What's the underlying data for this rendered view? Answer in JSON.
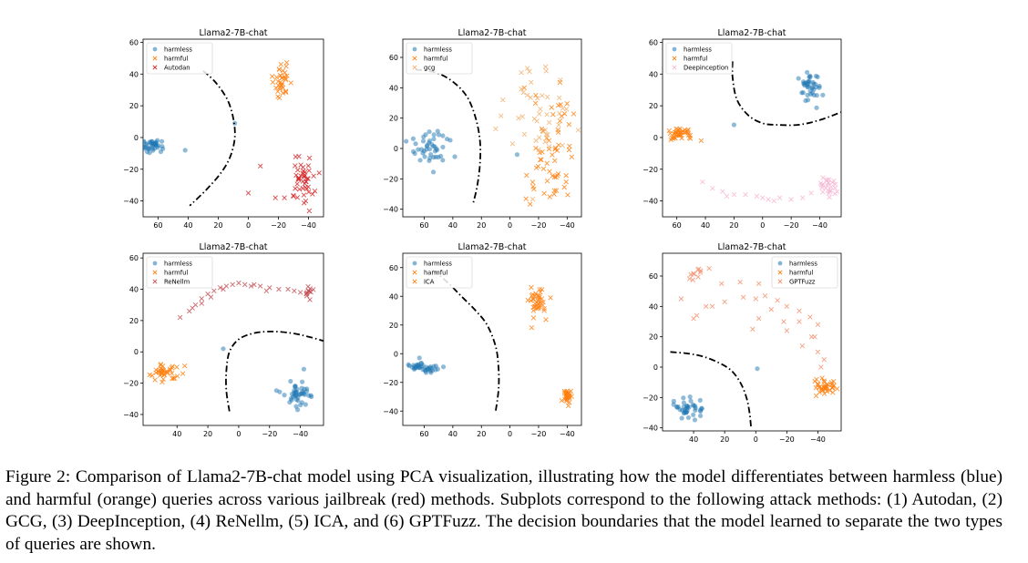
{
  "figure": {
    "caption": "Figure 2: Comparison of Llama2-7B-chat model using PCA visualization, illustrating how the model differentiates between harmless (blue) and harmful (orange) queries across various jailbreak (red) methods. Subplots correspond to the following attack methods: (1) Autodan, (2) GCG, (3) DeepInception, (4) ReNellm, (5) ICA, and (6) GPTFuzz. The decision boundaries that the model learned to separate the two types of queries are shown."
  },
  "colors": {
    "harmless": "#1f77b4",
    "harmful": "#ff7f0e",
    "autodan": "#d62728",
    "gcg": "#f0b070",
    "deepinception": "#f7b6d2",
    "renellm": "#c44e52",
    "ica": "#ff7f0e",
    "gptfuzz": "#f28e6b",
    "boundary": "#000000"
  },
  "chart_data": [
    {
      "type": "scatter",
      "title": "Llama2-7B-chat",
      "xlim": [
        70,
        -50
      ],
      "ylim": [
        -50,
        62
      ],
      "xticks": [
        60,
        40,
        20,
        0,
        -20,
        -40
      ],
      "yticks": [
        -40,
        -20,
        0,
        20,
        40,
        60
      ],
      "legend": [
        "harmless",
        "harmful",
        "Autodan"
      ],
      "legend_position": "top-left",
      "jailbreak_color_key": "autodan",
      "series": [
        {
          "name": "harmless",
          "marker": "circle",
          "color_key": "harmless",
          "clusters": [
            {
              "center": [
                64,
                -5
              ],
              "spread": [
                4,
                2
              ],
              "n": 40
            }
          ],
          "points": [
            [
              9,
              9
            ],
            [
              42,
              -8
            ]
          ]
        },
        {
          "name": "harmful",
          "marker": "x",
          "color_key": "harmful",
          "clusters": [
            {
              "center": [
                -22,
                36
              ],
              "spread": [
                3,
                5
              ],
              "n": 35
            }
          ],
          "points": []
        },
        {
          "name": "Autodan",
          "marker": "x",
          "color_key": "autodan",
          "clusters": [
            {
              "center": [
                -37,
                -28
              ],
              "spread": [
                4,
                7
              ],
              "n": 45
            }
          ],
          "points": [
            [
              0,
              -35
            ],
            [
              -18,
              -38
            ],
            [
              -24,
              -38
            ],
            [
              -30,
              -37
            ],
            [
              -8,
              -18
            ]
          ]
        }
      ],
      "boundary": [
        [
          30,
          42
        ],
        [
          22,
          35
        ],
        [
          14,
          24
        ],
        [
          10,
          12
        ],
        [
          9,
          0
        ],
        [
          12,
          -12
        ],
        [
          18,
          -22
        ],
        [
          28,
          -33
        ],
        [
          39,
          -43
        ]
      ]
    },
    {
      "type": "scatter",
      "title": "Llama2-7B-chat",
      "xlim": [
        75,
        -50
      ],
      "ylim": [
        -45,
        72
      ],
      "xticks": [
        60,
        40,
        20,
        0,
        -20,
        -40
      ],
      "yticks": [
        -40,
        -20,
        0,
        20,
        40,
        60
      ],
      "legend": [
        "harmless",
        "harmful",
        "gcg"
      ],
      "legend_position": "top-left",
      "jailbreak_color_key": "gcg",
      "series": [
        {
          "name": "harmless",
          "marker": "circle",
          "color_key": "harmless",
          "clusters": [
            {
              "center": [
                57,
                -1
              ],
              "spread": [
                6,
                6
              ],
              "n": 45
            }
          ],
          "points": [
            [
              -5,
              -4
            ]
          ]
        },
        {
          "name": "harmful",
          "marker": "x",
          "color_key": "harmful",
          "clusters": [
            {
              "center": [
                -25,
                -17
              ],
              "spread": [
                7,
                12
              ],
              "n": 35
            },
            {
              "center": [
                -32,
                15
              ],
              "spread": [
                6,
                12
              ],
              "n": 25
            }
          ],
          "points": [
            [
              -10,
              40
            ],
            [
              -18,
              35
            ]
          ]
        },
        {
          "name": "gcg",
          "marker": "x",
          "color_key": "gcg",
          "clusters": [
            {
              "center": [
                -20,
                22
              ],
              "spread": [
                12,
                18
              ],
              "n": 40
            }
          ],
          "points": [
            [
              -8,
              50
            ],
            [
              5,
              32
            ],
            [
              10,
              13
            ],
            [
              -6,
              20
            ]
          ]
        }
      ],
      "boundary": [
        [
          66,
          52
        ],
        [
          52,
          50
        ],
        [
          40,
          44
        ],
        [
          30,
          34
        ],
        [
          24,
          20
        ],
        [
          21,
          5
        ],
        [
          21,
          -10
        ],
        [
          23,
          -25
        ],
        [
          26,
          -37
        ]
      ]
    },
    {
      "type": "scatter",
      "title": "Llama2-7B-chat",
      "xlim": [
        70,
        -55
      ],
      "ylim": [
        -50,
        62
      ],
      "xticks": [
        60,
        40,
        20,
        0,
        -20,
        -40
      ],
      "yticks": [
        -40,
        -20,
        0,
        20,
        40,
        60
      ],
      "legend": [
        "harmless",
        "harmful",
        "Deepinception"
      ],
      "legend_position": "top-left",
      "jailbreak_color_key": "deepinception",
      "series": [
        {
          "name": "harmless",
          "marker": "circle",
          "color_key": "harmless",
          "clusters": [
            {
              "center": [
                -33,
                32
              ],
              "spread": [
                4,
                5
              ],
              "n": 40
            }
          ],
          "points": [
            [
              20,
              8
            ]
          ]
        },
        {
          "name": "harmful",
          "marker": "x",
          "color_key": "harmful",
          "clusters": [
            {
              "center": [
                58,
                2
              ],
              "spread": [
                4,
                2
              ],
              "n": 40
            }
          ],
          "points": [
            [
              43,
              -2
            ]
          ]
        },
        {
          "name": "Deepinception",
          "marker": "x",
          "color_key": "deepinception",
          "clusters": [
            {
              "center": [
                -46,
                -30
              ],
              "spread": [
                4,
                3
              ],
              "n": 25
            }
          ],
          "points": [
            [
              42,
              -28
            ],
            [
              35,
              -32
            ],
            [
              28,
              -34
            ],
            [
              20,
              -36
            ],
            [
              12,
              -36
            ],
            [
              4,
              -37
            ],
            [
              -4,
              -39
            ],
            [
              -12,
              -38
            ],
            [
              -20,
              -39
            ],
            [
              -28,
              -38
            ],
            [
              -34,
              -35
            ],
            [
              0,
              -38
            ],
            [
              -8,
              -40
            ],
            [
              25,
              -37
            ]
          ]
        }
      ],
      "boundary": [
        [
          21,
          48
        ],
        [
          21,
          38
        ],
        [
          18,
          24
        ],
        [
          10,
          14
        ],
        [
          0,
          9
        ],
        [
          -10,
          8
        ],
        [
          -25,
          8
        ],
        [
          -40,
          11
        ],
        [
          -55,
          16
        ]
      ]
    },
    {
      "type": "scatter",
      "title": "Llama2-7B-chat",
      "xlim": [
        62,
        -55
      ],
      "ylim": [
        -47,
        63
      ],
      "xticks": [
        40,
        20,
        0,
        -20,
        -40
      ],
      "yticks": [
        -40,
        -20,
        0,
        20,
        40,
        60
      ],
      "legend": [
        "harmless",
        "harmful",
        "ReNellm"
      ],
      "legend_position": "top-left",
      "jailbreak_color_key": "renellm",
      "series": [
        {
          "name": "harmless",
          "marker": "circle",
          "color_key": "harmless",
          "clusters": [
            {
              "center": [
                -38,
                -26
              ],
              "spread": [
                5,
                5
              ],
              "n": 45
            }
          ],
          "points": [
            [
              10,
              2
            ]
          ]
        },
        {
          "name": "harmful",
          "marker": "x",
          "color_key": "harmful",
          "clusters": [
            {
              "center": [
                48,
                -13
              ],
              "spread": [
                4,
                3
              ],
              "n": 40
            }
          ],
          "points": [
            [
              35,
              -9
            ]
          ]
        },
        {
          "name": "ReNellm",
          "marker": "x",
          "color_key": "renellm",
          "clusters": [
            {
              "center": [
                -45,
                37
              ],
              "spread": [
                2,
                2
              ],
              "n": 12
            }
          ],
          "points": [
            [
              38,
              22
            ],
            [
              32,
              26
            ],
            [
              28,
              30
            ],
            [
              24,
              34
            ],
            [
              20,
              37
            ],
            [
              16,
              39
            ],
            [
              12,
              41
            ],
            [
              8,
              42
            ],
            [
              4,
              43
            ],
            [
              0,
              44
            ],
            [
              -4,
              43
            ],
            [
              -8,
              42
            ],
            [
              -14,
              42
            ],
            [
              -20,
              41
            ],
            [
              -26,
              40
            ],
            [
              -32,
              40
            ],
            [
              -36,
              39
            ],
            [
              -40,
              38
            ],
            [
              24,
              31
            ],
            [
              18,
              35
            ],
            [
              10,
              40
            ],
            [
              30,
              28
            ],
            [
              -18,
              39
            ],
            [
              -10,
              43
            ]
          ]
        }
      ],
      "boundary": [
        [
          6,
          -38
        ],
        [
          8,
          -25
        ],
        [
          8,
          -12
        ],
        [
          6,
          0
        ],
        [
          0,
          8
        ],
        [
          -10,
          12
        ],
        [
          -22,
          13
        ],
        [
          -34,
          12
        ],
        [
          -44,
          10
        ],
        [
          -55,
          7
        ]
      ]
    },
    {
      "type": "scatter",
      "title": "Llama2-7B-chat",
      "xlim": [
        75,
        -50
      ],
      "ylim": [
        -50,
        70
      ],
      "xticks": [
        60,
        40,
        20,
        0,
        -20,
        -40
      ],
      "yticks": [
        -40,
        -20,
        0,
        20,
        40,
        60
      ],
      "legend": [
        "harmless",
        "harmful",
        "ICA"
      ],
      "legend_position": "top-left",
      "jailbreak_color_key": "ica",
      "series": [
        {
          "name": "harmless",
          "marker": "circle",
          "color_key": "harmless",
          "clusters": [
            {
              "center": [
                60,
                -9
              ],
              "spread": [
                5,
                2
              ],
              "n": 40
            }
          ],
          "points": []
        },
        {
          "name": "harmful",
          "marker": "x",
          "color_key": "harmful",
          "clusters": [
            {
              "center": [
                -18,
                37
              ],
              "spread": [
                4,
                5
              ],
              "n": 40
            }
          ],
          "points": []
        },
        {
          "name": "ICA",
          "marker": "x",
          "color_key": "ica",
          "clusters": [
            {
              "center": [
                -40,
                -30
              ],
              "spread": [
                1.5,
                3
              ],
              "n": 30
            }
          ],
          "points": []
        }
      ],
      "boundary": [
        [
          54,
          58
        ],
        [
          44,
          50
        ],
        [
          34,
          40
        ],
        [
          24,
          30
        ],
        [
          16,
          20
        ],
        [
          10,
          5
        ],
        [
          8,
          -10
        ],
        [
          8,
          -25
        ],
        [
          10,
          -40
        ]
      ]
    },
    {
      "type": "scatter",
      "title": "Llama2-7B-chat",
      "xlim": [
        60,
        -55
      ],
      "ylim": [
        -42,
        75
      ],
      "xticks": [
        40,
        20,
        0,
        -20,
        -40
      ],
      "yticks": [
        -40,
        -20,
        0,
        20,
        40,
        60
      ],
      "legend": [
        "harmless",
        "harmful",
        "GPTFuzz"
      ],
      "legend_position": "top-right",
      "jailbreak_color_key": "gptfuzz",
      "series": [
        {
          "name": "harmless",
          "marker": "circle",
          "color_key": "harmless",
          "clusters": [
            {
              "center": [
                43,
                -27
              ],
              "spread": [
                5,
                4
              ],
              "n": 40
            }
          ],
          "points": [
            [
              -1,
              -1
            ]
          ]
        },
        {
          "name": "harmful",
          "marker": "x",
          "color_key": "harmful",
          "clusters": [
            {
              "center": [
                -44,
                -13
              ],
              "spread": [
                4,
                3
              ],
              "n": 40
            }
          ],
          "points": []
        },
        {
          "name": "GPTFuzz",
          "marker": "x",
          "color_key": "gptfuzz",
          "clusters": [
            {
              "center": [
                39,
                61
              ],
              "spread": [
                2,
                2
              ],
              "n": 10
            }
          ],
          "points": [
            [
              30,
              65
            ],
            [
              22,
              55
            ],
            [
              10,
              56
            ],
            [
              -2,
              55
            ],
            [
              -6,
              47
            ],
            [
              -14,
              44
            ],
            [
              -20,
              40
            ],
            [
              -28,
              37
            ],
            [
              -35,
              33
            ],
            [
              -40,
              28
            ],
            [
              -38,
              20
            ],
            [
              -40,
              10
            ],
            [
              -44,
              5
            ],
            [
              -30,
              14
            ],
            [
              -20,
              24
            ],
            [
              -10,
              38
            ],
            [
              0,
              45
            ],
            [
              8,
              46
            ],
            [
              20,
              43
            ],
            [
              28,
              40
            ],
            [
              38,
              34
            ],
            [
              48,
              45
            ],
            [
              -2,
              32
            ],
            [
              2,
              25
            ],
            [
              -18,
              30
            ],
            [
              32,
              40
            ],
            [
              40,
              32
            ],
            [
              -28,
              30
            ],
            [
              -36,
              20
            ],
            [
              -42,
              0
            ]
          ]
        }
      ],
      "boundary": [
        [
          55,
          10
        ],
        [
          44,
          9
        ],
        [
          34,
          7
        ],
        [
          24,
          3
        ],
        [
          16,
          -2
        ],
        [
          10,
          -10
        ],
        [
          6,
          -20
        ],
        [
          4,
          -30
        ],
        [
          3,
          -40
        ]
      ]
    }
  ]
}
